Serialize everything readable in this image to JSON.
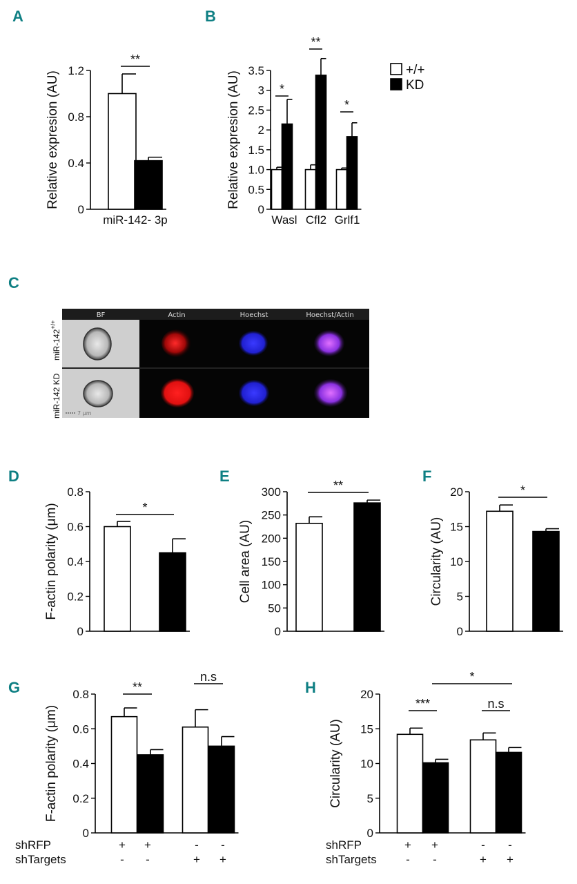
{
  "panel_letters": {
    "A": "A",
    "B": "B",
    "C": "C",
    "D": "D",
    "E": "E",
    "F": "F",
    "G": "G",
    "H": "H"
  },
  "legend": {
    "wt": "+/+",
    "kd": "KD"
  },
  "colors": {
    "wt": "#ffffff",
    "kd": "#000000",
    "panel_label": "#0e7f83",
    "actin": "#ff1a1a",
    "hoechst": "#2828ff",
    "merge": "#c040ff"
  },
  "imaging": {
    "columns": [
      "BF",
      "Actin",
      "Hoechst",
      "Hoechst/Actin"
    ],
    "row1_prefix": "miR-142",
    "row1_sup": "+/+",
    "row2": "miR-142 KD",
    "scale_bar": "7 μm"
  },
  "treatment_rows": {
    "labels": [
      "shRFP",
      "shTargets"
    ],
    "shRFP": [
      "+",
      "+",
      "-",
      "-"
    ],
    "shTargets": [
      "-",
      "-",
      "+",
      "+"
    ]
  },
  "chart_data": [
    {
      "panel": "A",
      "type": "bar",
      "categories": [
        "miR-142- 3p"
      ],
      "series": [
        {
          "name": "+/+",
          "values": [
            1.0
          ],
          "errors": [
            0.17
          ]
        },
        {
          "name": "KD",
          "values": [
            0.42
          ],
          "errors": [
            0.03
          ]
        }
      ],
      "ylabel": "Relative expresion (AU)",
      "xlabel": "",
      "ylim": [
        0,
        1.2
      ],
      "yticks": [
        "0",
        "0.4",
        "0.8",
        "1.2"
      ],
      "yticks_val": [
        0,
        0.4,
        0.8,
        1.2
      ],
      "significance": [
        {
          "groups": [
            0
          ],
          "label": "**"
        }
      ]
    },
    {
      "panel": "B",
      "type": "bar",
      "categories": [
        "Wasl",
        "Cfl2",
        "Grlf1"
      ],
      "series": [
        {
          "name": "+/+",
          "values": [
            1.0,
            1.0,
            1.0
          ],
          "errors": [
            0.06,
            0.12,
            0.04
          ]
        },
        {
          "name": "KD",
          "values": [
            2.15,
            3.38,
            1.83
          ],
          "errors": [
            0.62,
            0.42,
            0.35
          ]
        }
      ],
      "ylabel": "Relative expresion (AU)",
      "xlabel": "",
      "ylim": [
        0,
        3.5
      ],
      "yticks": [
        "0",
        "0.5",
        "1.0",
        "1.5",
        "2",
        "2.5",
        "3",
        "3.5"
      ],
      "yticks_val": [
        0,
        0.5,
        1.0,
        1.5,
        2,
        2.5,
        3,
        3.5
      ],
      "significance": [
        {
          "groups": [
            0
          ],
          "label": "*"
        },
        {
          "groups": [
            1
          ],
          "label": "**"
        },
        {
          "groups": [
            2
          ],
          "label": "*"
        }
      ]
    },
    {
      "panel": "D",
      "type": "bar",
      "categories": [
        ""
      ],
      "series": [
        {
          "name": "+/+",
          "values": [
            0.6
          ],
          "errors": [
            0.03
          ]
        },
        {
          "name": "KD",
          "values": [
            0.45
          ],
          "errors": [
            0.08
          ]
        }
      ],
      "ylabel": "F-actin polarity (μm)",
      "xlabel": "",
      "ylim": [
        0,
        0.8
      ],
      "yticks": [
        "0",
        "0.2",
        "0.4",
        "0.6",
        "0.8"
      ],
      "yticks_val": [
        0,
        0.2,
        0.4,
        0.6,
        0.8
      ],
      "significance": [
        {
          "groups": [
            0
          ],
          "label": "*"
        }
      ]
    },
    {
      "panel": "E",
      "type": "bar",
      "categories": [
        ""
      ],
      "series": [
        {
          "name": "+/+",
          "values": [
            232
          ],
          "errors": [
            14
          ]
        },
        {
          "name": "KD",
          "values": [
            276
          ],
          "errors": [
            6
          ]
        }
      ],
      "ylabel": "Cell area (AU)",
      "xlabel": "",
      "ylim": [
        0,
        300
      ],
      "yticks": [
        "0",
        "50",
        "100",
        "150",
        "200",
        "250",
        "300"
      ],
      "yticks_val": [
        0,
        50,
        100,
        150,
        200,
        250,
        300
      ],
      "significance": [
        {
          "groups": [
            0
          ],
          "label": "**"
        }
      ]
    },
    {
      "panel": "F",
      "type": "bar",
      "categories": [
        ""
      ],
      "series": [
        {
          "name": "+/+",
          "values": [
            17.2
          ],
          "errors": [
            0.9
          ]
        },
        {
          "name": "KD",
          "values": [
            14.3
          ],
          "errors": [
            0.4
          ]
        }
      ],
      "ylabel": "Circularity (AU)",
      "xlabel": "",
      "ylim": [
        0,
        20
      ],
      "yticks": [
        "0",
        "5",
        "10",
        "15",
        "20"
      ],
      "yticks_val": [
        0,
        5,
        10,
        15,
        20
      ],
      "significance": [
        {
          "groups": [
            0
          ],
          "label": "*"
        }
      ]
    },
    {
      "panel": "G",
      "type": "bar",
      "categories": [
        "shRFP",
        "shTargets"
      ],
      "series": [
        {
          "name": "+/+",
          "values": [
            0.67,
            0.61
          ],
          "errors": [
            0.05,
            0.1
          ]
        },
        {
          "name": "KD",
          "values": [
            0.45,
            0.5
          ],
          "errors": [
            0.03,
            0.055
          ]
        }
      ],
      "ylabel": "F-actin polarity (μm)",
      "xlabel": "",
      "ylim": [
        0,
        0.8
      ],
      "yticks": [
        "0",
        "0.2",
        "0.4",
        "0.6",
        "0.8"
      ],
      "yticks_val": [
        0,
        0.2,
        0.4,
        0.6,
        0.8
      ],
      "significance": [
        {
          "groups": [
            0
          ],
          "label": "**"
        },
        {
          "groups": [
            1
          ],
          "label": "n.s"
        }
      ]
    },
    {
      "panel": "H",
      "type": "bar",
      "categories": [
        "shRFP",
        "shTargets"
      ],
      "series": [
        {
          "name": "+/+",
          "values": [
            14.2,
            13.4
          ],
          "errors": [
            0.9,
            1.0
          ]
        },
        {
          "name": "KD",
          "values": [
            10.1,
            11.6
          ],
          "errors": [
            0.5,
            0.7
          ]
        }
      ],
      "ylabel": "Circularity (AU)",
      "xlabel": "",
      "ylim": [
        0,
        20
      ],
      "yticks": [
        "0",
        "5",
        "10",
        "15",
        "20"
      ],
      "yticks_val": [
        0,
        5,
        10,
        15,
        20
      ],
      "significance": [
        {
          "groups": [
            0
          ],
          "label": "***"
        },
        {
          "groups": [
            1
          ],
          "label": "n.s"
        },
        {
          "between_kd": [
            0,
            1
          ],
          "label": "*"
        }
      ]
    }
  ]
}
